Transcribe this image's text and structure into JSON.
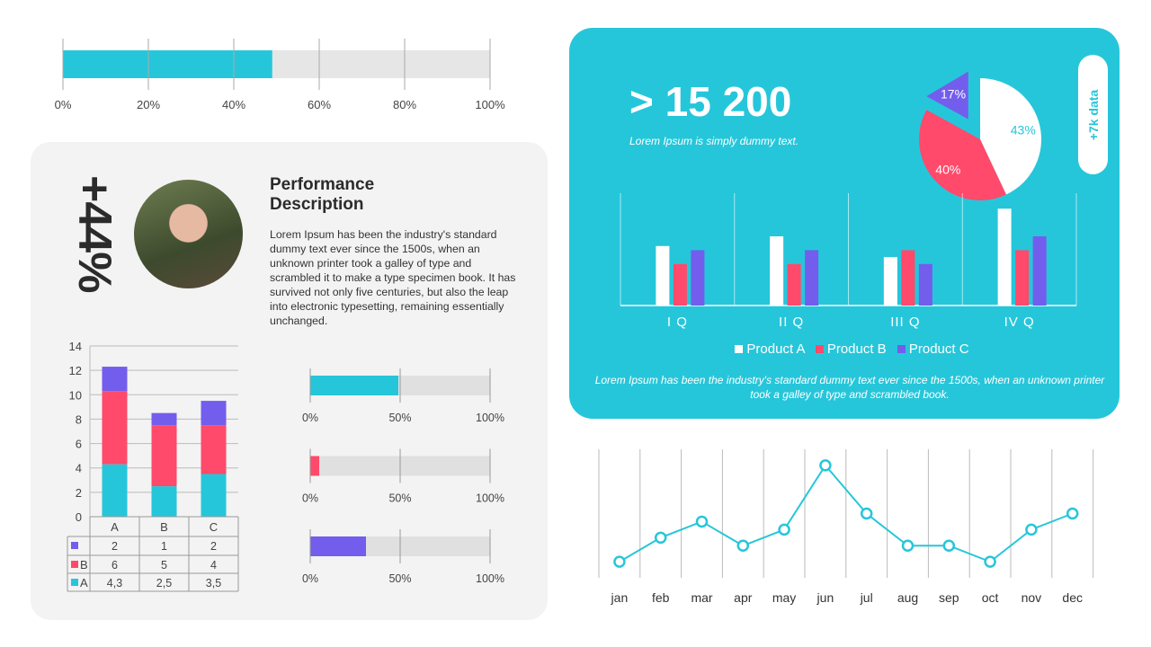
{
  "colors": {
    "cyan": "#26c6da",
    "red": "#ff4a6b",
    "purple": "#735ded",
    "track": "#e2e2e2",
    "white": "#ffffff"
  },
  "top_progress": {
    "value_pct": 49,
    "ticks": [
      "0%",
      "20%",
      "40%",
      "60%",
      "80%",
      "100%"
    ]
  },
  "profile": {
    "growth": "+44%",
    "photo": "person-photo",
    "title": "Performance Description",
    "text": "Lorem Ipsum has been the industry's standard dummy text ever since the 1500s, when an unknown printer took a galley of type and scrambled it to make a type specimen book. It has survived not only five centuries, but also the leap into electronic typesetting, remaining essentially unchanged."
  },
  "small_progress": [
    {
      "value_pct": 49,
      "color": "#26c6da",
      "ticks": [
        "0%",
        "50%",
        "100%"
      ]
    },
    {
      "value_pct": 5,
      "color": "#ff4a6b",
      "ticks": [
        "0%",
        "50%",
        "100%"
      ]
    },
    {
      "value_pct": 31,
      "color": "#735ded",
      "ticks": [
        "0%",
        "50%",
        "100%"
      ]
    }
  ],
  "highlight": {
    "number": "> 15 200",
    "subtitle": "Lorem Ipsum is simply dummy text.",
    "pill": "+7k data",
    "footer": "Lorem Ipsum has been the industry's standard dummy text ever since the 1500s, when an unknown printer took a galley of type and scrambled book."
  },
  "chart_data": [
    {
      "type": "bar",
      "stacked": true,
      "categories": [
        "A",
        "B",
        "C"
      ],
      "ylim": [
        0,
        14
      ],
      "yticks": [
        "0",
        "2",
        "4",
        "6",
        "8",
        "10",
        "12",
        "14"
      ],
      "grid": true,
      "series": [
        {
          "name": "A",
          "color": "#26c6da",
          "values": [
            4.3,
            2.5,
            3.5
          ],
          "labels": [
            "4,3",
            "2,5",
            "3,5"
          ]
        },
        {
          "name": "B",
          "color": "#ff4a6b",
          "values": [
            6,
            5,
            4
          ],
          "labels": [
            "6",
            "5",
            "4"
          ]
        },
        {
          "name": "",
          "color": "#735ded",
          "values": [
            2,
            1,
            2
          ],
          "labels": [
            "2",
            "1",
            "2"
          ]
        }
      ],
      "data_table": true
    },
    {
      "type": "pie",
      "slices": [
        {
          "label": "43%",
          "value": 43,
          "color": "#ffffff"
        },
        {
          "label": "40%",
          "value": 40,
          "color": "#ff4a6b"
        },
        {
          "label": "17%",
          "value": 17,
          "color": "#735ded",
          "exploded": true
        }
      ]
    },
    {
      "type": "bar",
      "categories": [
        "I Q",
        "II Q",
        "III Q",
        "IV Q"
      ],
      "ylim": [
        0,
        8
      ],
      "legend": "bottom",
      "series": [
        {
          "name": "Product A",
          "color": "#ffffff",
          "values": [
            4.3,
            5,
            3.5,
            7
          ]
        },
        {
          "name": "Product B",
          "color": "#ff4a6b",
          "values": [
            3,
            3,
            4,
            4
          ]
        },
        {
          "name": "Product C",
          "color": "#735ded",
          "values": [
            4,
            4,
            3,
            5
          ]
        }
      ]
    },
    {
      "type": "line",
      "categories": [
        "jan",
        "feb",
        "mar",
        "apr",
        "may",
        "jun",
        "jul",
        "aug",
        "sep",
        "oct",
        "nov",
        "dec"
      ],
      "ylim": [
        0,
        16
      ],
      "color": "#26c6da",
      "values": [
        2,
        5,
        7,
        4,
        6,
        14,
        8,
        4,
        4,
        2,
        6,
        8
      ]
    }
  ]
}
